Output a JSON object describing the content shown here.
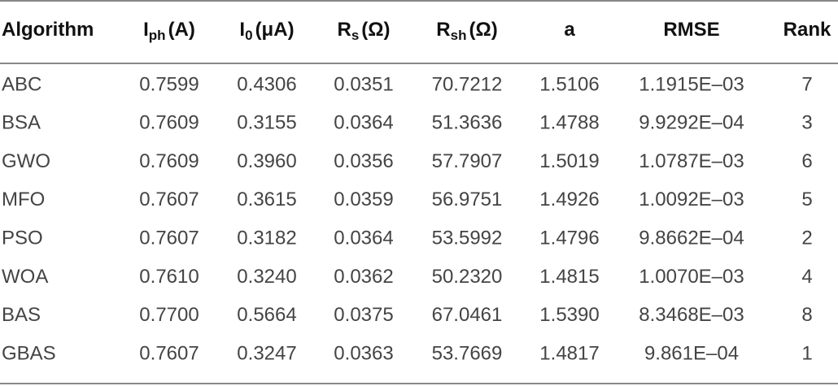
{
  "table": {
    "header": [
      {
        "text": "Algorithm"
      },
      {
        "text": "I",
        "sub": "ph",
        "unit": "(A)"
      },
      {
        "text": "I",
        "sub": "0",
        "unit": "(μA)"
      },
      {
        "text": "R",
        "sub": "s",
        "unit": "(Ω)"
      },
      {
        "text": "R",
        "sub": "sh",
        "unit": "(Ω)"
      },
      {
        "text": "a"
      },
      {
        "text": "RMSE"
      },
      {
        "text": "Rank"
      }
    ],
    "rows": [
      [
        "ABC",
        "0.7599",
        "0.4306",
        "0.0351",
        "70.7212",
        "1.5106",
        "1.1915E–03",
        "7"
      ],
      [
        "BSA",
        "0.7609",
        "0.3155",
        "0.0364",
        "51.3636",
        "1.4788",
        "9.9292E–04",
        "3"
      ],
      [
        "GWO",
        "0.7609",
        "0.3960",
        "0.0356",
        "57.7907",
        "1.5019",
        "1.0787E–03",
        "6"
      ],
      [
        "MFO",
        "0.7607",
        "0.3615",
        "0.0359",
        "56.9751",
        "1.4926",
        "1.0092E–03",
        "5"
      ],
      [
        "PSO",
        "0.7607",
        "0.3182",
        "0.0364",
        "53.5992",
        "1.4796",
        "9.8662E–04",
        "2"
      ],
      [
        "WOA",
        "0.7610",
        "0.3240",
        "0.0362",
        "50.2320",
        "1.4815",
        "1.0070E–03",
        "4"
      ],
      [
        "BAS",
        "0.7700",
        "0.5664",
        "0.0375",
        "67.0461",
        "1.5390",
        "8.3468E–03",
        "8"
      ],
      [
        "GBAS",
        "0.7607",
        "0.3247",
        "0.0363",
        "53.7669",
        "1.4817",
        "9.861E–04",
        "1"
      ]
    ]
  }
}
